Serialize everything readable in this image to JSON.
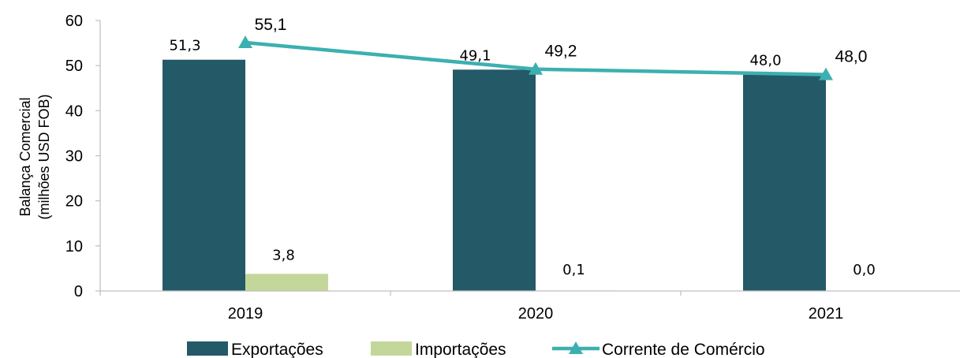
{
  "chart_data": {
    "type": "bar",
    "categories": [
      "2019",
      "2020",
      "2021"
    ],
    "series": [
      {
        "name": "Exportações",
        "type": "bar",
        "values": [
          51.3,
          49.1,
          48.0
        ],
        "labels": [
          "51,3",
          "49,1",
          "48,0"
        ],
        "color": "#245967"
      },
      {
        "name": "Importações",
        "type": "bar",
        "values": [
          3.8,
          0.1,
          0.0
        ],
        "labels": [
          "3,8",
          "0,1",
          "0,0"
        ],
        "color": "#c4d79b"
      },
      {
        "name": "Corrente de Comércio",
        "type": "line",
        "marker": "triangle",
        "values": [
          55.1,
          49.2,
          48.0
        ],
        "labels": [
          "55,1",
          "49,2",
          "48,0"
        ],
        "color": "#3cb0b0"
      }
    ],
    "ylabel_line1": "Balança Comercial",
    "ylabel_line2": "(milhões USD FOB)",
    "ylim": [
      0,
      60
    ],
    "yticks": [
      0,
      10,
      20,
      30,
      40,
      50,
      60
    ],
    "grid": false,
    "legend_position": "bottom"
  }
}
